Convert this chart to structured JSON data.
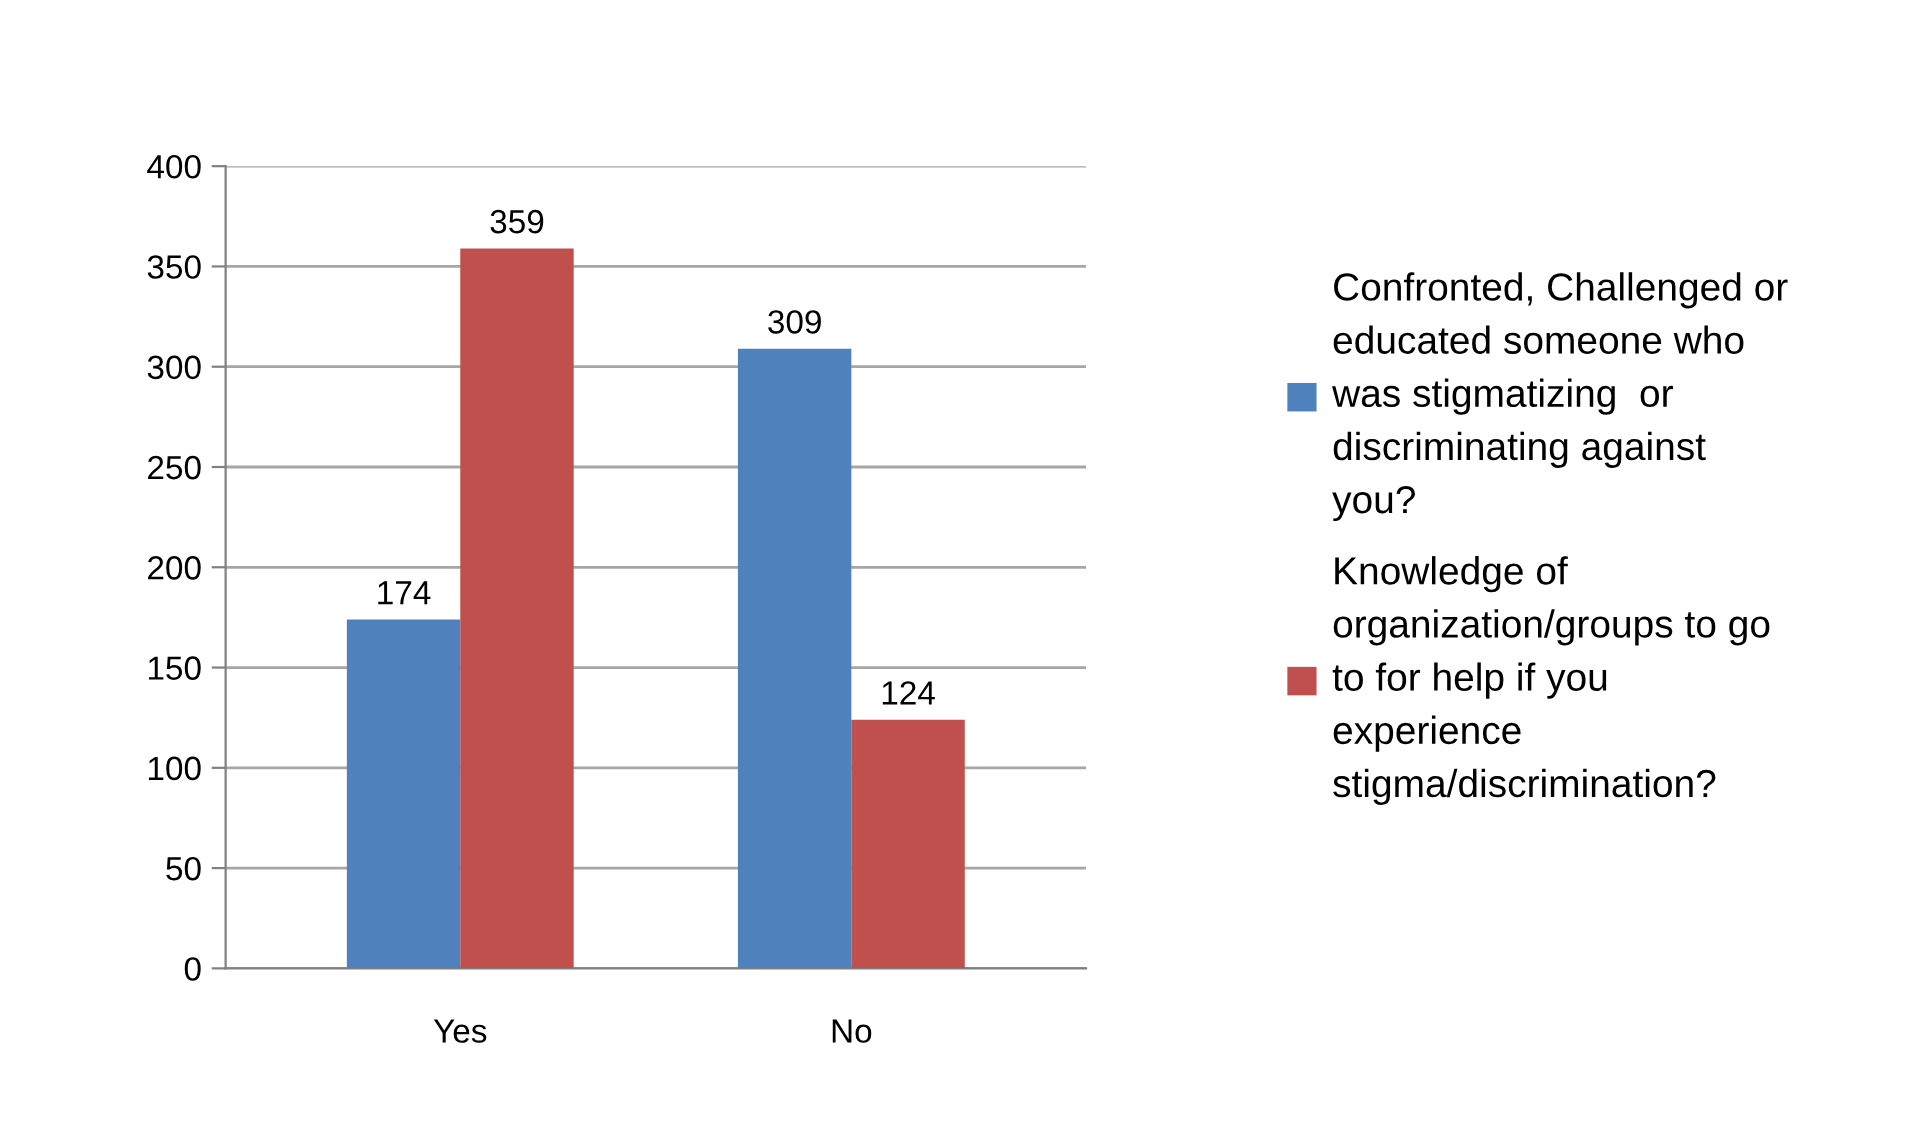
{
  "chart_data": {
    "type": "bar",
    "categories": [
      "Yes",
      "No"
    ],
    "series": [
      {
        "name": "Confronted, Challenged or educated someone who was stigmatizing  or discriminating against you?",
        "color": "#4f81bd",
        "values": [
          174,
          309
        ]
      },
      {
        "name": "Knowledge of organization/groups to go to for help if you experience stigma/discrimination?",
        "color": "#c0504d",
        "values": [
          359,
          124
        ]
      }
    ],
    "ylim": [
      0,
      400
    ],
    "yticks": [
      0,
      50,
      100,
      150,
      200,
      250,
      300,
      350,
      400
    ],
    "grid": "y",
    "legend": "right",
    "data_labels": true
  }
}
